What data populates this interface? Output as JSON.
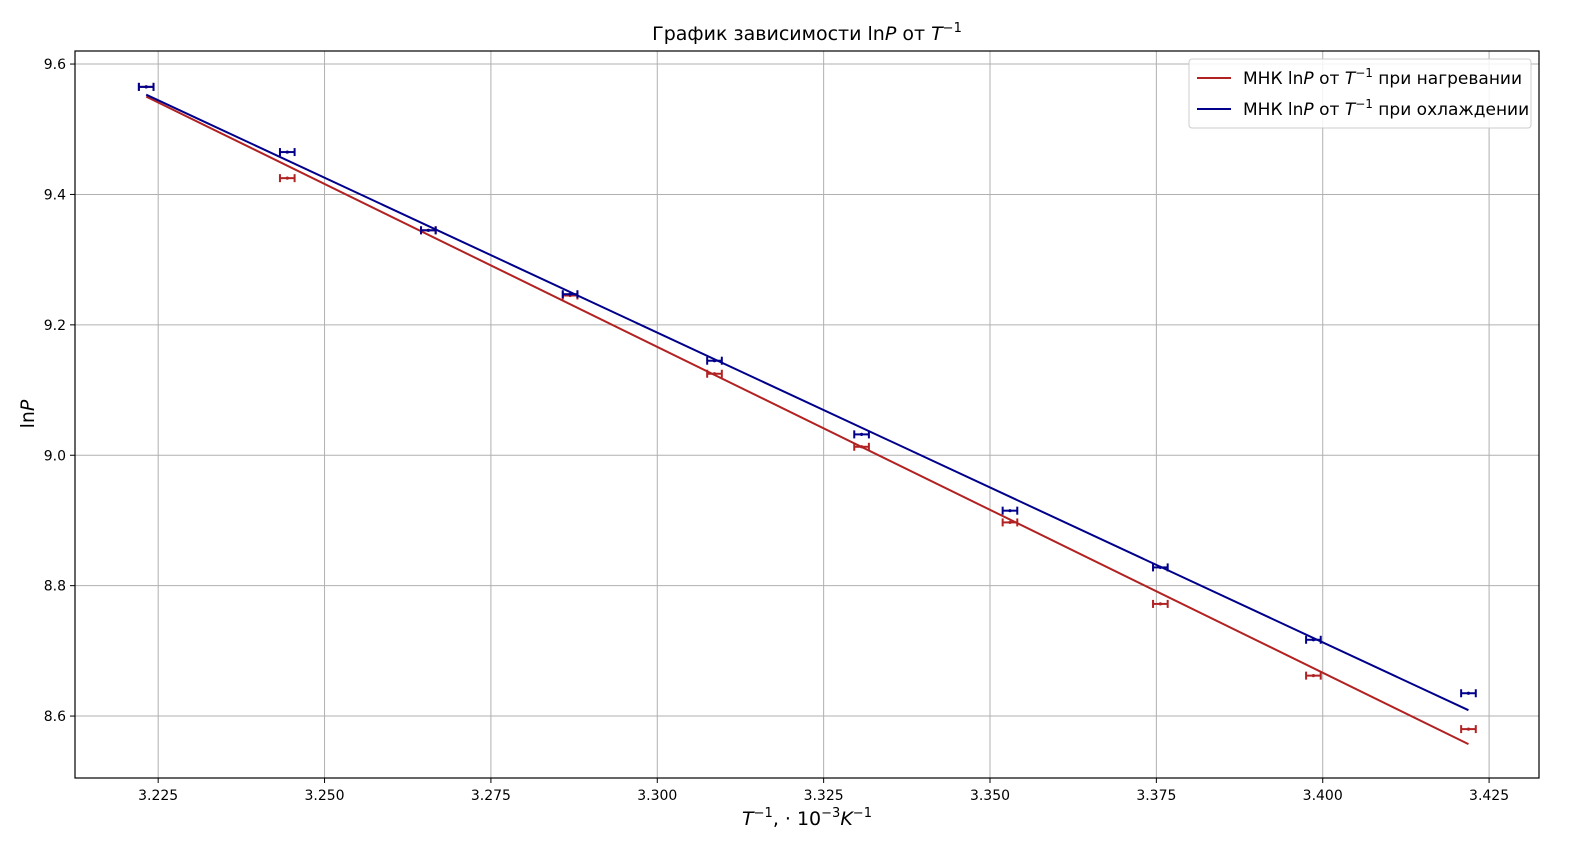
{
  "chart_data": {
    "type": "line",
    "title": "График зависимости lnP от T⁻¹",
    "title_parts": [
      "График зависимости ln",
      "P",
      " от ",
      "T",
      "−1"
    ],
    "xlabel": "T⁻¹, ·10⁻³K⁻¹",
    "xlabel_parts": [
      "T",
      "−1",
      ", · 10",
      "−3",
      "K",
      "−1"
    ],
    "ylabel": "lnP",
    "ylabel_parts": [
      "ln",
      "P"
    ],
    "xlim": [
      3.2125,
      3.4325
    ],
    "ylim": [
      8.505,
      9.62
    ],
    "x_ticks": [
      3.225,
      3.25,
      3.275,
      3.3,
      3.325,
      3.35,
      3.375,
      3.4,
      3.425
    ],
    "x_tick_labels": [
      "3.225",
      "3.250",
      "3.275",
      "3.300",
      "3.325",
      "3.350",
      "3.375",
      "3.400",
      "3.425"
    ],
    "y_ticks": [
      8.6,
      8.8,
      9.0,
      9.2,
      9.4,
      9.6
    ],
    "y_tick_labels": [
      "8.6",
      "8.8",
      "9.0",
      "9.2",
      "9.4",
      "9.6"
    ],
    "grid": true,
    "legend_position": "top-right",
    "x_error": 0.0011,
    "series": [
      {
        "name": "МНК lnP от T⁻¹ при нагревании",
        "legend_parts": [
          "МНК ln",
          "P",
          " от ",
          "T",
          "−1",
          " при нагревании"
        ],
        "color": "#b22222",
        "points": [
          {
            "x": 3.2232,
            "y": 9.565
          },
          {
            "x": 3.2444,
            "y": 9.425
          },
          {
            "x": 3.2656,
            "y": 9.345
          },
          {
            "x": 3.2869,
            "y": 9.245
          },
          {
            "x": 3.3086,
            "y": 9.125
          },
          {
            "x": 3.3307,
            "y": 9.013
          },
          {
            "x": 3.353,
            "y": 8.897
          },
          {
            "x": 3.3756,
            "y": 8.772
          },
          {
            "x": 3.3986,
            "y": 8.662
          },
          {
            "x": 3.4219,
            "y": 8.58
          }
        ],
        "fit": {
          "x": [
            3.2232,
            3.4219
          ],
          "y": [
            9.55,
            8.557
          ]
        }
      },
      {
        "name": "МНК lnP от T⁻¹ при охлаждении",
        "legend_parts": [
          "МНК ln",
          "P",
          " от ",
          "T",
          "−1",
          " при охлаждении"
        ],
        "color": "#00008b",
        "points": [
          {
            "x": 3.2232,
            "y": 9.565
          },
          {
            "x": 3.2444,
            "y": 9.465
          },
          {
            "x": 3.2656,
            "y": 9.345
          },
          {
            "x": 3.2869,
            "y": 9.247
          },
          {
            "x": 3.3086,
            "y": 9.145
          },
          {
            "x": 3.3307,
            "y": 9.032
          },
          {
            "x": 3.353,
            "y": 8.915
          },
          {
            "x": 3.3756,
            "y": 8.828
          },
          {
            "x": 3.3986,
            "y": 8.717
          },
          {
            "x": 3.4219,
            "y": 8.635
          }
        ],
        "fit": {
          "x": [
            3.2232,
            3.4219
          ],
          "y": [
            9.553,
            8.609
          ]
        }
      }
    ]
  }
}
